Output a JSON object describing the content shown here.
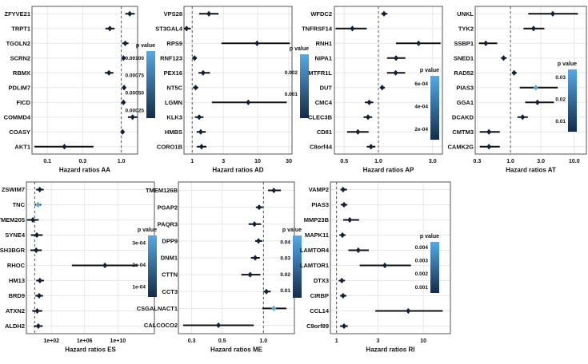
{
  "legend_title": "p value",
  "colors": {
    "bar_top": "#55a9e6",
    "bar_bottom": "#142c49",
    "point_dark": "#10203a",
    "point_light": "#57a8e2",
    "ci_line": "#111111",
    "ref_line": "#555555",
    "grid": "#e7e7e7",
    "border": "#555555",
    "text": "#111111"
  },
  "chart_data": [
    {
      "id": "AA",
      "type": "forest",
      "xlabel": "Hazard ratios AA",
      "x_ticks": [
        0.1,
        0.3,
        1.0
      ],
      "x_tick_labels": [
        "0.1",
        "0.3",
        "1.0"
      ],
      "x_range": [
        0.062,
        1.66
      ],
      "ref_line": 1.0,
      "legend_labels": [
        "0.00100",
        "0.00075",
        "0.00050",
        "0.00025"
      ],
      "genes": [
        "ZFYVE21",
        "TRPT1",
        "TGOLN2",
        "SCRN2",
        "RBMX",
        "PDLIM7",
        "FICD",
        "COMMD4",
        "COASY",
        "AKT1"
      ],
      "hr": [
        1.3,
        0.7,
        1.13,
        1.07,
        0.68,
        1.09,
        1.07,
        1.42,
        1.04,
        0.17
      ],
      "ci_low": [
        1.13,
        0.61,
        1.03,
        1.02,
        0.6,
        1.04,
        1.02,
        1.23,
        1.0,
        0.067
      ],
      "ci_high": [
        1.52,
        0.81,
        1.25,
        1.12,
        0.78,
        1.15,
        1.13,
        1.65,
        1.09,
        0.42
      ],
      "light_points": []
    },
    {
      "id": "AD",
      "type": "forest",
      "xlabel": "Hazard ratios AD",
      "x_ticks": [
        1,
        3,
        10,
        30
      ],
      "x_tick_labels": [
        "1",
        "3",
        "10",
        "30"
      ],
      "x_range": [
        0.75,
        33.5
      ],
      "ref_line": 1.0,
      "legend_labels": [
        "0.002",
        "0.001"
      ],
      "genes": [
        "VPS28",
        "ST3GAL4",
        "RPS9",
        "RNF123",
        "PEX16",
        "NT5C",
        "LGMN",
        "KLK3",
        "HMBS",
        "CORO1B"
      ],
      "hr": [
        1.8,
        0.82,
        9.8,
        1.09,
        1.47,
        1.13,
        7.2,
        1.28,
        1.35,
        1.39
      ],
      "ci_low": [
        1.28,
        0.71,
        2.8,
        1.0,
        1.25,
        1.03,
        2.0,
        1.1,
        1.17,
        1.18
      ],
      "ci_high": [
        2.53,
        0.95,
        31.0,
        1.18,
        1.87,
        1.24,
        27.8,
        1.49,
        1.61,
        1.65
      ],
      "light_points": []
    },
    {
      "id": "AP",
      "type": "forest",
      "xlabel": "Hazard ratios AP",
      "x_ticks": [
        0.5,
        1.0,
        3.0
      ],
      "x_tick_labels": [
        "0.5",
        "1.0",
        "3.0"
      ],
      "x_range": [
        0.41,
        3.66
      ],
      "ref_line": 1.0,
      "legend_labels": [
        "6e-04",
        "4e-04",
        "2e-04"
      ],
      "genes": [
        "WFDC2",
        "TNFRSF14",
        "RNH1",
        "NIPA1",
        "MTFR1L",
        "DUT",
        "CMC4",
        "CLEC3B",
        "CD81",
        "C8orf44"
      ],
      "hr": [
        1.12,
        0.59,
        2.26,
        1.43,
        1.42,
        1.08,
        0.83,
        0.81,
        0.66,
        0.86
      ],
      "ci_low": [
        1.06,
        0.42,
        1.43,
        1.19,
        1.19,
        1.03,
        0.76,
        0.74,
        0.53,
        0.79
      ],
      "ci_high": [
        1.2,
        0.79,
        3.53,
        1.73,
        1.72,
        1.14,
        0.9,
        0.88,
        0.82,
        0.94
      ],
      "light_points": []
    },
    {
      "id": "AT",
      "type": "forest",
      "xlabel": "Hazard ratios AT",
      "x_ticks": [
        0.3,
        1.0,
        3.0,
        10.0
      ],
      "x_tick_labels": [
        "0.3",
        "1.0",
        "3.0",
        "10.0"
      ],
      "x_range": [
        0.28,
        15.5
      ],
      "ref_line": 1.0,
      "legend_labels": [
        "0.03",
        "0.02",
        "0.01"
      ],
      "genes": [
        "UNKL",
        "TYK2",
        "SSBP1",
        "SNED1",
        "RAD52",
        "PIAS3",
        "GGA1",
        "DCAKD",
        "CMTM3",
        "CAMK2G"
      ],
      "hr": [
        4.6,
        2.3,
        0.41,
        0.78,
        1.14,
        2.5,
        2.65,
        1.55,
        0.46,
        0.46
      ],
      "ci_low": [
        1.9,
        1.6,
        0.32,
        0.71,
        1.05,
        1.4,
        1.7,
        1.29,
        0.33,
        0.33
      ],
      "ci_high": [
        11.4,
        3.4,
        0.62,
        0.87,
        1.25,
        5.5,
        4.8,
        1.87,
        0.68,
        0.68
      ],
      "light_points": [
        "PIAS3"
      ]
    },
    {
      "id": "ES",
      "type": "forest",
      "xlabel": "Hazard ratios ES",
      "x_ticks": [
        100,
        1000000,
        10000000000
      ],
      "x_tick_labels": [
        "1e+02",
        "1e+06",
        "1e+10"
      ],
      "x_range": [
        0.1,
        250000000000000
      ],
      "ref_line": 1.0,
      "legend_labels": [
        "3e-04",
        "2e-04",
        "1e-04"
      ],
      "genes": [
        "ZSWIM7",
        "TNC",
        "TMEM205",
        "SYNE4",
        "SH3BGR",
        "RHOC",
        "HM13",
        "BRD9",
        "ATXN2",
        "ALDH2"
      ],
      "hr": [
        4.0,
        2.5,
        0.6,
        1.8,
        1.5,
        280000000,
        4.2,
        3.4,
        2.0,
        2.7
      ],
      "ci_low": [
        1.5,
        1.0,
        0.12,
        0.35,
        0.3,
        30000,
        1.5,
        1.2,
        0.5,
        0.8
      ],
      "ci_high": [
        12.0,
        6.0,
        3.0,
        9.0,
        7.0,
        2500000000000,
        13.0,
        10.0,
        8.0,
        9.0
      ],
      "light_points": [
        "TNC"
      ]
    },
    {
      "id": "ME",
      "type": "forest",
      "xlabel": "Hazard ratios ME",
      "x_ticks": [
        0.3,
        0.5,
        1.0
      ],
      "x_tick_labels": [
        "0.3",
        "0.5",
        "1.0"
      ],
      "x_range": [
        0.24,
        1.68
      ],
      "ref_line": 1.0,
      "legend_labels": [
        "0.04",
        "0.03",
        "0.02",
        "0.01"
      ],
      "genes": [
        "TMEM126B",
        "PGAP2",
        "PAQR3",
        "DPP9",
        "DNM1",
        "CTTN",
        "CCT3",
        "CSGALNACT1",
        "CALCOCO2"
      ],
      "hr": [
        1.19,
        0.93,
        0.86,
        0.92,
        0.87,
        0.8,
        1.05,
        1.19,
        0.47
      ],
      "ci_low": [
        1.08,
        0.88,
        0.78,
        0.87,
        0.81,
        0.69,
        1.0,
        0.98,
        0.26
      ],
      "ci_high": [
        1.34,
        0.99,
        0.96,
        0.98,
        0.94,
        0.95,
        1.13,
        1.47,
        0.85
      ],
      "light_points": [
        "CSGALNACT1"
      ]
    },
    {
      "id": "RI",
      "type": "forest",
      "xlabel": "Hazard ratios RI",
      "x_ticks": [
        1,
        3,
        10
      ],
      "x_tick_labels": [
        "1",
        "3",
        "10"
      ],
      "x_range": [
        0.85,
        20.5
      ],
      "ref_line": 1.0,
      "legend_labels": [
        "0.004",
        "0.003",
        "0.002",
        "0.001"
      ],
      "genes": [
        "VAMP2",
        "PIAS3",
        "MMP23B",
        "MAPK11",
        "LAMTOR4",
        "LAMTOR1",
        "DTX3",
        "CIRBP",
        "CCL14",
        "C9orf89"
      ],
      "hr": [
        1.19,
        1.22,
        1.42,
        1.17,
        1.78,
        3.6,
        1.15,
        1.19,
        6.7,
        1.22
      ],
      "ci_low": [
        1.11,
        1.12,
        1.19,
        1.08,
        1.37,
        1.85,
        1.06,
        1.1,
        2.8,
        1.1
      ],
      "ci_high": [
        1.32,
        1.33,
        1.82,
        1.27,
        2.36,
        7.2,
        1.25,
        1.3,
        16.7,
        1.35
      ],
      "light_points": []
    }
  ]
}
